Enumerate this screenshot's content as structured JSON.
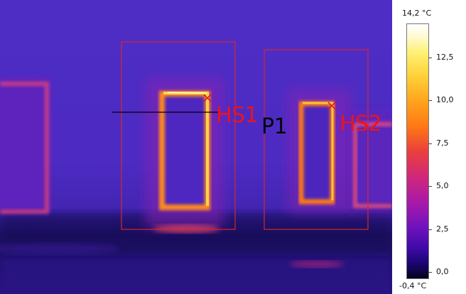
{
  "image": {
    "labels": {
      "hotspot_1": "HS1",
      "hotspot_2": "HS2",
      "profile_line": "P1"
    }
  },
  "scale": {
    "max_label": "14,2 °C",
    "min_label": "-0,4 °C",
    "ticks": [
      "12,5",
      "10,0",
      "7,5",
      "5,0",
      "2,5",
      "0,0"
    ],
    "palette": "iron",
    "colors": {
      "hot": "#ffffff",
      "warm": "#ffa51e",
      "mid": "#d0287a",
      "cool": "#6f12bd",
      "cold": "#05021e"
    }
  },
  "markers": {
    "box_color": "#d8262a",
    "hotspot_marker_color": "#e01020",
    "profile_line_color": "#000000"
  }
}
